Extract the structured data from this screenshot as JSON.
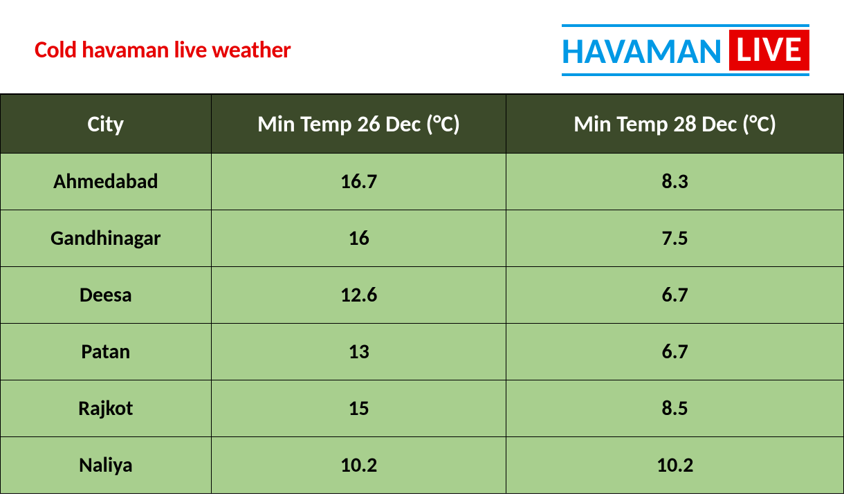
{
  "header": {
    "title": "Cold havaman live weather",
    "title_color": "#e60000",
    "logo": {
      "word1": "HAVAMAN",
      "word2": "LIVE",
      "word1_color": "#0099e5",
      "line_color": "#0099e5",
      "live_bg": "#e60000",
      "live_text_color": "#ffffff"
    }
  },
  "table": {
    "type": "table",
    "header_bg": "#3c4a2a",
    "header_text_color": "#ffffff",
    "row_bg": "#a8cf8e",
    "cell_text_color": "#000000",
    "border_color": "#000000",
    "header_fontsize": 33,
    "cell_fontsize": 30,
    "columns": [
      {
        "label": "City",
        "width_pct": 25
      },
      {
        "label": "Min Temp 26 Dec (°C)",
        "width_pct": 35
      },
      {
        "label": "Min Temp 28 Dec (°C)",
        "width_pct": 40
      }
    ],
    "rows": [
      [
        "Ahmedabad",
        "16.7",
        "8.3"
      ],
      [
        "Gandhinagar",
        "16",
        "7.5"
      ],
      [
        "Deesa",
        "12.6",
        "6.7"
      ],
      [
        "Patan",
        "13",
        "6.7"
      ],
      [
        "Rajkot",
        "15",
        "8.5"
      ],
      [
        "Naliya",
        "10.2",
        "10.2"
      ]
    ]
  }
}
